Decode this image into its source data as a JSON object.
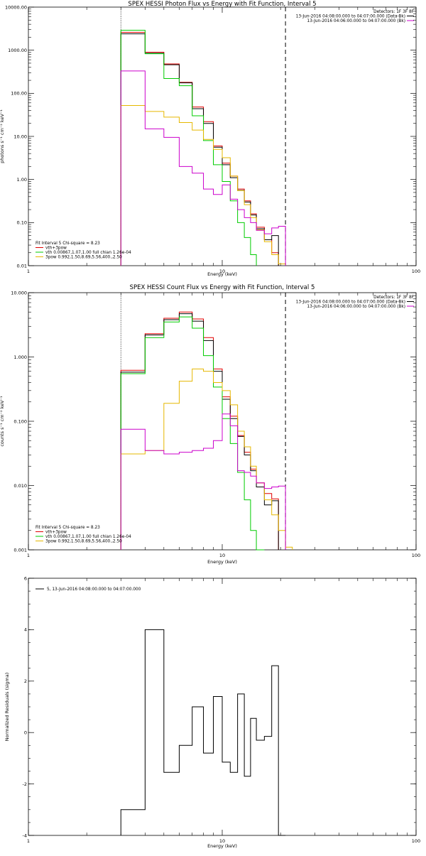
{
  "chart_data": [
    {
      "type": "line",
      "title": "SPEX HESSI Photon Flux vs Energy with Fit Function, Interval 5",
      "xlabel": "Energy (keV)",
      "ylabel": "photons s⁻¹ cm⁻² keV⁻¹",
      "xscale": "log",
      "yscale": "log",
      "xlim": [
        1,
        100
      ],
      "ylim": [
        0.01,
        10000
      ],
      "x_ticks": [
        {
          "v": 1,
          "label": "1"
        },
        {
          "v": 10,
          "label": "10"
        },
        {
          "v": 100,
          "label": "100"
        }
      ],
      "y_ticks": [
        {
          "v": 0.01,
          "label": "0.01"
        },
        {
          "v": 0.1,
          "label": "0.10"
        },
        {
          "v": 1,
          "label": "1.00"
        },
        {
          "v": 10,
          "label": "10.00"
        },
        {
          "v": 100,
          "label": "100.00"
        },
        {
          "v": 1000,
          "label": "1000.00"
        },
        {
          "v": 10000,
          "label": "10000.00"
        }
      ],
      "vlines": [
        {
          "x": 3.0,
          "style": "dotted"
        },
        {
          "x": 21.2,
          "style": "dashed"
        }
      ],
      "legend_right": {
        "heading": "Detectors: 1F 3F 8F",
        "items": [
          {
            "text": "13-Jun-2016 04:08:00.000 to 04:07:00.000 (Data-Bk)",
            "color": "#000000"
          },
          {
            "text": "13-Jun-2016 04:06:00.000 to 04:07:00.000 (Bk)",
            "color": "#cc00cc"
          }
        ]
      },
      "legend_left": {
        "heading": "Fit Interval 5   Chi-square = 8.23",
        "items": [
          {
            "text": "vth+3pow",
            "color": "#e00000"
          },
          {
            "text": "vth 0.00867,1.07,1.00  full chian 1.26e-04",
            "color": "#00cc00"
          },
          {
            "text": "3pow 0.992,1.50,8.69,5.56,400.,2.50",
            "color": "#e6b800"
          }
        ]
      },
      "edges": [
        3.0,
        4.0,
        5.0,
        6.0,
        7.0,
        8.0,
        9.0,
        10.0,
        11.0,
        12.0,
        13.0,
        14.0,
        15.0,
        16.5,
        18.0,
        19.5,
        21.2,
        23.0,
        25.0
      ],
      "series": [
        {
          "color": "#e00000",
          "values": [
            2600,
            900,
            480,
            180,
            48,
            22,
            6.0,
            2.4,
            1.2,
            0.6,
            0.32,
            0.16,
            0.078,
            0.04,
            0.02,
            null,
            null,
            null
          ]
        },
        {
          "color": "#000000",
          "values": [
            2400,
            850,
            460,
            175,
            44,
            20,
            5.6,
            2.2,
            1.1,
            0.56,
            0.3,
            0.15,
            0.072,
            0.04,
            0.05,
            null,
            null,
            null
          ]
        },
        {
          "color": "#00cc00",
          "values": [
            2900,
            830,
            220,
            150,
            30,
            8.0,
            2.2,
            0.9,
            0.32,
            0.1,
            0.045,
            0.018,
            null,
            null,
            null,
            null,
            null,
            null
          ]
        },
        {
          "color": "#e6b800",
          "values": [
            52,
            38,
            28,
            21,
            14,
            8.5,
            5.0,
            3.2,
            1.2,
            0.55,
            0.26,
            0.13,
            0.068,
            0.036,
            0.018,
            0.011,
            null,
            null
          ]
        },
        {
          "color": "#cc00cc",
          "values": [
            330,
            15,
            9.5,
            2.0,
            1.4,
            0.6,
            0.45,
            0.75,
            0.35,
            0.2,
            0.13,
            0.1,
            0.066,
            0.055,
            0.075,
            0.082,
            null,
            null
          ]
        }
      ]
    },
    {
      "type": "line",
      "title": "SPEX HESSI Count Flux vs Energy with Fit Function, Interval 5",
      "xlabel": "Energy (keV)",
      "ylabel": "counts s⁻¹ cm⁻² keV⁻¹",
      "xscale": "log",
      "yscale": "log",
      "xlim": [
        1,
        100
      ],
      "ylim": [
        0.001,
        10
      ],
      "x_ticks": [
        {
          "v": 1,
          "label": "1"
        },
        {
          "v": 10,
          "label": "10"
        },
        {
          "v": 100,
          "label": "100"
        }
      ],
      "y_ticks": [
        {
          "v": 0.001,
          "label": "0.001"
        },
        {
          "v": 0.01,
          "label": "0.010"
        },
        {
          "v": 0.1,
          "label": "0.100"
        },
        {
          "v": 1,
          "label": "1.000"
        },
        {
          "v": 10,
          "label": "10.000"
        }
      ],
      "vlines": [
        {
          "x": 3.0,
          "style": "dotted"
        },
        {
          "x": 21.2,
          "style": "dashed"
        }
      ],
      "legend_right": {
        "heading": "Detectors: 1F 3F 8F",
        "items": [
          {
            "text": "13-Jun-2016 04:08:00.000 to 04:07:00.000 (Data-Bk)",
            "color": "#000000"
          },
          {
            "text": "13-Jun-2016 04:06:00.000 to 04:07:00.000 (Bk)",
            "color": "#cc00cc"
          }
        ]
      },
      "legend_left": {
        "heading": "Fit Interval 5   Chi-square = 8.23",
        "items": [
          {
            "text": "vth+3pow",
            "color": "#e00000"
          },
          {
            "text": "vth 0.00867,1.07,1.00  full chian 1.26e-04",
            "color": "#00cc00"
          },
          {
            "text": "3pow 0.992,1.50,8.69,5.56,400.,2.50",
            "color": "#e6b800"
          }
        ]
      },
      "edges": [
        3.0,
        4.0,
        5.0,
        6.0,
        7.0,
        8.0,
        9.0,
        10.0,
        11.0,
        12.0,
        13.0,
        14.0,
        15.0,
        16.5,
        18.0,
        19.5,
        21.2,
        23.0,
        25.0
      ],
      "series": [
        {
          "color": "#e00000",
          "values": [
            0.62,
            2.3,
            4.0,
            5.0,
            3.9,
            2.0,
            0.65,
            0.24,
            0.12,
            0.06,
            0.033,
            0.018,
            0.011,
            0.0075,
            0.0062,
            null,
            null,
            null
          ]
        },
        {
          "color": "#000000",
          "values": [
            0.58,
            2.2,
            3.8,
            4.7,
            3.6,
            1.8,
            0.6,
            0.22,
            0.11,
            0.058,
            0.03,
            0.017,
            0.0095,
            0.005,
            0.0058,
            null,
            null,
            null
          ]
        },
        {
          "color": "#00cc00",
          "values": [
            0.55,
            2.0,
            3.5,
            4.2,
            2.8,
            1.05,
            0.34,
            0.11,
            0.045,
            0.016,
            0.006,
            0.002,
            0.00085,
            null,
            null,
            null,
            null,
            null
          ]
        },
        {
          "color": "#e6b800",
          "values": [
            0.031,
            0.035,
            0.19,
            0.42,
            0.65,
            0.6,
            0.4,
            0.3,
            0.18,
            0.07,
            0.04,
            0.02,
            0.011,
            0.006,
            0.0035,
            0.002,
            0.0011,
            null
          ]
        },
        {
          "color": "#cc00cc",
          "values": [
            0.075,
            0.035,
            0.031,
            0.033,
            0.035,
            0.038,
            0.05,
            0.13,
            0.085,
            0.017,
            0.016,
            0.014,
            0.011,
            0.009,
            0.0095,
            0.0098,
            null,
            null
          ]
        }
      ]
    },
    {
      "type": "line",
      "title": "",
      "xlabel": "Energy (keV)",
      "ylabel": "Normalized Residuals (sigma)",
      "xscale": "log",
      "yscale": "linear",
      "xlim": [
        1,
        100
      ],
      "ylim": [
        -4,
        6
      ],
      "x_ticks": [
        {
          "v": 1,
          "label": "1"
        },
        {
          "v": 10,
          "label": "10"
        },
        {
          "v": 100,
          "label": "100"
        }
      ],
      "y_ticks": [
        {
          "v": -4,
          "label": "-4"
        },
        {
          "v": -2,
          "label": "-2"
        },
        {
          "v": 0,
          "label": "0"
        },
        {
          "v": 2,
          "label": "2"
        },
        {
          "v": 4,
          "label": "4"
        },
        {
          "v": 6,
          "label": "6"
        }
      ],
      "vlines": [],
      "legend_left": {
        "heading": "",
        "items": [
          {
            "text": "5, 13-Jun-2016 04:08:00.000 to 04:07:00.000",
            "color": "#000000"
          }
        ]
      },
      "edges": [
        3.0,
        4.0,
        5.0,
        6.0,
        7.0,
        8.0,
        9.0,
        10.0,
        11.0,
        12.0,
        13.0,
        14.0,
        15.0,
        16.5,
        18.0,
        19.5,
        21.2
      ],
      "series": [
        {
          "color": "#000000",
          "values": [
            -3.0,
            4.0,
            -1.55,
            -0.5,
            1.0,
            -0.8,
            1.4,
            -1.15,
            -1.55,
            1.5,
            -1.7,
            0.55,
            -0.3,
            -0.15,
            2.6,
            -4.0
          ]
        }
      ]
    }
  ]
}
